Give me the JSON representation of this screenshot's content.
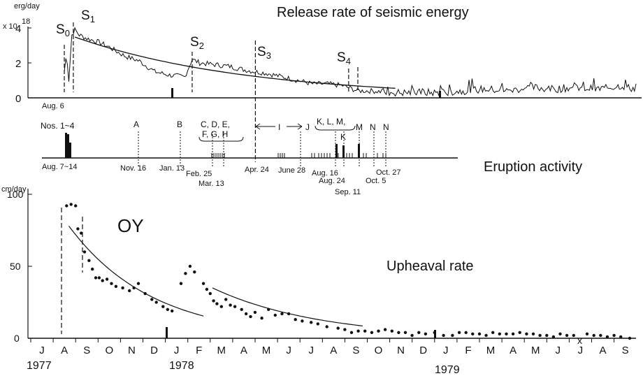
{
  "chart_data": [
    {
      "type": "line",
      "title": "Release rate of seismic energy",
      "ylabel": "erg/day",
      "multiplier": "x 10",
      "multiplier_exp": "18",
      "yticks": [
        0,
        2,
        4
      ],
      "ylim": [
        0,
        5
      ],
      "start_label": "Aug. 6",
      "markers": [
        {
          "label": "S0",
          "day": 0
        },
        {
          "label": "S1",
          "day": 12
        },
        {
          "label": "S2",
          "day": 170
        },
        {
          "label": "S3",
          "day": 254
        },
        {
          "label": "S4",
          "day": 378
        }
      ],
      "series": [
        {
          "name": "release rate (x10^18 erg/day)",
          "days": [
            0,
            3,
            6,
            10,
            14,
            20,
            30,
            45,
            60,
            80,
            100,
            120,
            140,
            160,
            170,
            180,
            200,
            220,
            240,
            254,
            270,
            290,
            310,
            330,
            350,
            370,
            390,
            410,
            440,
            470,
            500,
            530,
            560,
            590,
            620,
            650,
            680,
            710,
            740,
            760
          ],
          "values": [
            1.5,
            2.6,
            1.0,
            3.6,
            3.9,
            3.6,
            3.4,
            3.2,
            2.9,
            2.4,
            2.1,
            1.5,
            1.3,
            1.2,
            2.2,
            2.0,
            1.9,
            1.8,
            1.6,
            1.5,
            1.4,
            1.2,
            1.0,
            0.8,
            0.8,
            0.7,
            0.4,
            0.4,
            0.3,
            0.3,
            0.3,
            0.4,
            0.5,
            0.4,
            0.6,
            0.5,
            0.6,
            0.5,
            0.7,
            0.5
          ]
        }
      ]
    },
    {
      "type": "bar",
      "title": "Eruption activity",
      "events": [
        {
          "name": "Nos. 1~4",
          "date": "Aug. 7~14"
        },
        {
          "name": "A",
          "date": "Nov. 16"
        },
        {
          "name": "B",
          "date": "Jan. 13"
        },
        {
          "name": "C, D, E,",
          "date": "Feb. 25"
        },
        {
          "name": "F, G, H",
          "date": "Mar. 13"
        },
        {
          "name": "I",
          "date": "Apr. 24"
        },
        {
          "name": "J",
          "date": "June 28"
        },
        {
          "name": "K, L, M,",
          "date": "Aug. 16"
        },
        {
          "name": "K",
          "date": "Aug. 24"
        },
        {
          "name": "M",
          "date": "Sep. 11"
        },
        {
          "name": "N",
          "date": "Oct. 5"
        },
        {
          "name": "N",
          "date": "Oct. 27"
        }
      ]
    },
    {
      "type": "scatter",
      "title": "Upheaval rate",
      "ylabel": "cm/day",
      "yticks": [
        0,
        50,
        100
      ],
      "ylim": [
        0,
        100
      ],
      "annotation": "OY",
      "missing_mark": "x",
      "months": [
        "J",
        "A",
        "S",
        "O",
        "N",
        "D",
        "J",
        "F",
        "M",
        "A",
        "M",
        "J",
        "J",
        "A",
        "S",
        "O",
        "N",
        "D",
        "J",
        "F",
        "M",
        "A",
        "M",
        "J",
        "J",
        "A",
        "S"
      ],
      "years": [
        "1977",
        "1978",
        "1979"
      ],
      "points": {
        "month_index": [
          1.1,
          1.3,
          1.5,
          1.6,
          1.75,
          1.9,
          2.1,
          2.25,
          2.4,
          2.55,
          2.7,
          2.9,
          3.1,
          3.3,
          3.6,
          3.9,
          4.1,
          4.3,
          4.6,
          4.9,
          5.1,
          5.4,
          5.6,
          5.8,
          6.2,
          6.4,
          6.6,
          6.8,
          7.2,
          7.35,
          7.5,
          7.65,
          7.8,
          8.0,
          8.2,
          8.4,
          8.6,
          8.9,
          9.1,
          9.3,
          9.5,
          9.8,
          10.1,
          10.4,
          10.7,
          11.0,
          11.3,
          11.6,
          12.0,
          12.3,
          12.7,
          13.2,
          13.5,
          13.8,
          14.1,
          14.4,
          14.7,
          15.0,
          15.3,
          15.6,
          15.9,
          16.2,
          16.5,
          16.8,
          17.1,
          17.5,
          17.9,
          18.3,
          18.6,
          18.9,
          19.2,
          19.5,
          19.8,
          20.1,
          20.4,
          20.7,
          21.0,
          21.3,
          21.6,
          21.9,
          22.2,
          22.5,
          22.8,
          23.1,
          23.4,
          23.7,
          24.3,
          24.6,
          24.9,
          25.2,
          25.5,
          25.8,
          26.2
        ],
        "values": [
          92,
          93,
          92,
          76,
          73,
          60,
          54,
          48,
          42,
          42,
          40,
          41,
          38,
          36,
          35,
          33,
          35,
          38,
          31,
          27,
          25,
          22,
          20,
          19,
          38,
          45,
          50,
          46,
          38,
          34,
          31,
          26,
          24,
          22,
          27,
          23,
          22,
          20,
          17,
          15,
          18,
          14,
          20,
          16,
          17,
          17,
          13,
          12,
          11,
          10,
          8,
          7,
          6,
          4,
          5,
          5,
          4,
          5,
          6,
          5,
          4,
          4,
          2,
          4,
          3,
          4,
          2,
          2,
          4,
          4,
          3,
          3,
          2,
          4,
          3,
          3,
          3,
          4,
          3,
          3,
          2,
          2,
          1,
          3,
          2,
          2,
          3,
          2,
          2,
          1,
          2,
          1,
          0
        ]
      },
      "fit_curves": [
        {
          "month_start": 1.2,
          "month_end": 7.2,
          "v0": 78,
          "k": 0.27
        },
        {
          "month_start": 7.6,
          "month_end": 14.3,
          "v0": 35,
          "k": 0.21
        }
      ]
    }
  ]
}
